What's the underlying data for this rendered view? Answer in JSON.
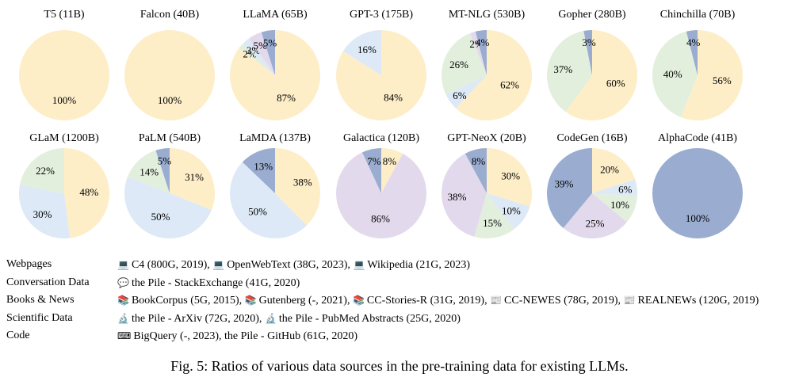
{
  "chart_data": {
    "type": "pie",
    "colors": {
      "webpages": "#fdeec8",
      "conversation": "#e2efdc",
      "books": "#dde9f6",
      "scientific": "#e3d9ec",
      "code": "#9aadd1"
    },
    "pies": [
      {
        "name": "T5 (11B)",
        "slices": [
          {
            "cat": "webpages",
            "value": 100
          }
        ]
      },
      {
        "name": "Falcon (40B)",
        "slices": [
          {
            "cat": "webpages",
            "value": 100
          }
        ]
      },
      {
        "name": "LLaMA (65B)",
        "slices": [
          {
            "cat": "webpages",
            "value": 87
          },
          {
            "cat": "conversation",
            "value": 2
          },
          {
            "cat": "books",
            "value": 3
          },
          {
            "cat": "scientific",
            "value": 5
          },
          {
            "cat": "code",
            "value": 5
          }
        ]
      },
      {
        "name": "GPT-3 (175B)",
        "slices": [
          {
            "cat": "webpages",
            "value": 84
          },
          {
            "cat": "books",
            "value": 16
          }
        ]
      },
      {
        "name": "MT-NLG (530B)",
        "slices": [
          {
            "cat": "webpages",
            "value": 62
          },
          {
            "cat": "books",
            "value": 6
          },
          {
            "cat": "conversation",
            "value": 26
          },
          {
            "cat": "scientific",
            "value": 2
          },
          {
            "cat": "code",
            "value": 4
          }
        ]
      },
      {
        "name": "Gopher (280B)",
        "slices": [
          {
            "cat": "webpages",
            "value": 60
          },
          {
            "cat": "conversation",
            "value": 37
          },
          {
            "cat": "code",
            "value": 3
          }
        ]
      },
      {
        "name": "Chinchilla (70B)",
        "slices": [
          {
            "cat": "webpages",
            "value": 56
          },
          {
            "cat": "conversation",
            "value": 40
          },
          {
            "cat": "code",
            "value": 4
          }
        ]
      },
      {
        "name": "GLaM (1200B)",
        "slices": [
          {
            "cat": "webpages",
            "value": 48
          },
          {
            "cat": "books",
            "value": 30
          },
          {
            "cat": "conversation",
            "value": 22
          }
        ]
      },
      {
        "name": "PaLM (540B)",
        "slices": [
          {
            "cat": "webpages",
            "value": 31
          },
          {
            "cat": "books",
            "value": 50
          },
          {
            "cat": "conversation",
            "value": 14
          },
          {
            "cat": "code",
            "value": 5
          }
        ]
      },
      {
        "name": "LaMDA (137B)",
        "slices": [
          {
            "cat": "webpages",
            "value": 38
          },
          {
            "cat": "books",
            "value": 50
          },
          {
            "cat": "code",
            "value": 13
          }
        ]
      },
      {
        "name": "Galactica (120B)",
        "slices": [
          {
            "cat": "webpages",
            "value": 8
          },
          {
            "cat": "scientific",
            "value": 86
          },
          {
            "cat": "code",
            "value": 7
          }
        ]
      },
      {
        "name": "GPT-NeoX (20B)",
        "slices": [
          {
            "cat": "webpages",
            "value": 30
          },
          {
            "cat": "books",
            "value": 10
          },
          {
            "cat": "conversation",
            "value": 15
          },
          {
            "cat": "scientific",
            "value": 38
          },
          {
            "cat": "code",
            "value": 8
          }
        ]
      },
      {
        "name": "CodeGen (16B)",
        "slices": [
          {
            "cat": "webpages",
            "value": 20
          },
          {
            "cat": "books",
            "value": 6
          },
          {
            "cat": "conversation",
            "value": 10
          },
          {
            "cat": "scientific",
            "value": 25
          },
          {
            "cat": "code",
            "value": 39
          }
        ]
      },
      {
        "name": "AlphaCode (41B)",
        "slices": [
          {
            "cat": "code",
            "value": 100
          }
        ]
      }
    ]
  },
  "legend": [
    {
      "category": "Webpages",
      "icon": "laptop-icon",
      "glyph": "💻",
      "items": [
        {
          "glyph": "💻",
          "text": "C4 (800G, 2019), "
        },
        {
          "glyph": "💻",
          "text": "OpenWebText (38G, 2023), "
        },
        {
          "glyph": "💻",
          "text": "Wikipedia (21G, 2023)"
        }
      ]
    },
    {
      "category": "Conversation Data",
      "icon": "speech-bubble-icon",
      "items": [
        {
          "glyph": "💬",
          "text": "the Pile - StackExchange (41G, 2020)"
        }
      ]
    },
    {
      "category": "Books & News",
      "icon": "books-icon",
      "items": [
        {
          "glyph": "📚",
          "text": "BookCorpus (5G, 2015), "
        },
        {
          "glyph": "📚",
          "text": "Gutenberg (-, 2021), "
        },
        {
          "glyph": "📚",
          "text": "CC-Stories-R (31G, 2019), "
        },
        {
          "glyph": "📰",
          "text": "CC-NEWES (78G, 2019), "
        },
        {
          "glyph": "📰",
          "text": "REALNEWs (120G, 2019)"
        }
      ]
    },
    {
      "category": "Scientific Data",
      "icon": "microscope-icon",
      "items": [
        {
          "glyph": "🔬",
          "text": "the Pile - ArXiv (72G, 2020), "
        },
        {
          "glyph": "🔬",
          "text": "the Pile - PubMed Abstracts (25G, 2020)"
        }
      ]
    },
    {
      "category": "Code",
      "icon": "keyboard-icon",
      "items": [
        {
          "glyph": "⌨",
          "text": "BigQuery (-, 2023), the Pile - GitHub (61G, 2020)"
        }
      ]
    }
  ],
  "caption": "Fig. 5: Ratios of various data sources in the pre-training data for existing LLMs."
}
